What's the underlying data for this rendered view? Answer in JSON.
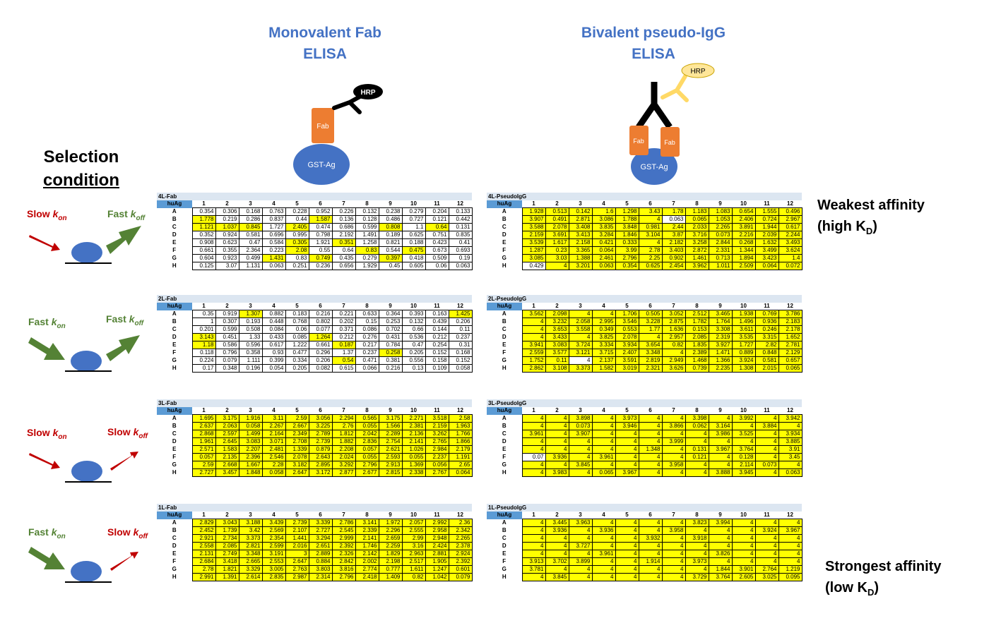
{
  "columns": {
    "fab_title_1": "Monovalent Fab",
    "fab_title_2": "ELISA",
    "igg_title_1": "Bivalent pseudo-IgG",
    "igg_title_2": "ELISA"
  },
  "selection": {
    "title_1": "Selection",
    "title_2": "condition"
  },
  "affinity": {
    "weak_1": "Weakest affinity",
    "weak_2_pre": "(high K",
    "weak_sub": "D",
    "weak_2_post": ")",
    "strong_1": "Strongest affinity",
    "strong_2_pre": "(low K",
    "strong_sub": "D",
    "strong_2_post": ")"
  },
  "diagram": {
    "hrp": "HRP",
    "fab": "Fab",
    "antigen": "GST-Ag"
  },
  "conditions": [
    {
      "on_speed": "Slow",
      "off_speed": "Fast",
      "k": "k",
      "on": "on",
      "off": "off"
    },
    {
      "on_speed": "Fast",
      "off_speed": "Fast",
      "k": "k",
      "on": "on",
      "off": "off"
    },
    {
      "on_speed": "Slow",
      "off_speed": "Slow",
      "k": "k",
      "on": "on",
      "off": "off"
    },
    {
      "on_speed": "Fast",
      "off_speed": "Slow",
      "k": "k",
      "on": "on",
      "off": "off"
    }
  ],
  "colors": {
    "highlight": "#ffff00",
    "header": "#5b9bd5",
    "title_band": "#dce6f1",
    "title_blue": "#4472c4",
    "red_arrow": "#c00000",
    "green_arrow": "#548235",
    "antigen_blue": "#4472c4",
    "fab_orange": "#ed7d31",
    "hrp_yellow": "#ffd966"
  },
  "plate_corner": "huAg",
  "plate_columns": [
    "1",
    "2",
    "3",
    "4",
    "5",
    "6",
    "7",
    "8",
    "9",
    "10",
    "11",
    "12"
  ],
  "plate_rows": [
    "A",
    "B",
    "C",
    "D",
    "E",
    "F",
    "G",
    "H"
  ],
  "plates": [
    {
      "title": "4L-Fab",
      "hi": "000000000000100001000000111010001010000000000000000010100000000010010100000101001000000000000000",
      "values": [
        [
          "0.354",
          "0.306",
          "0.168",
          "0.763",
          "0.228",
          "0.952",
          "0.226",
          "0.132",
          "0.238",
          "0.279",
          "0.204",
          "0.133"
        ],
        [
          "1.778",
          "0.219",
          "0.286",
          "0.837",
          "0.44",
          "1.587",
          "0.136",
          "0.128",
          "0.486",
          "0.727",
          "0.121",
          "0.442"
        ],
        [
          "1.121",
          "1.037",
          "0.845",
          "1.727",
          "2.405",
          "0.474",
          "0.686",
          "0.599",
          "0.808",
          "1.1",
          "0.64",
          "0.131"
        ],
        [
          "0.352",
          "0.924",
          "0.581",
          "0.696",
          "0.995",
          "0.798",
          "2.192",
          "1.491",
          "0.189",
          "0.625",
          "0.751",
          "0.835"
        ],
        [
          "0.908",
          "0.623",
          "0.47",
          "0.584",
          "0.305",
          "1.921",
          "0.351",
          "1.258",
          "0.821",
          "0.188",
          "0.423",
          "0.41"
        ],
        [
          "0.661",
          "0.355",
          "2.364",
          "0.223",
          "2.08",
          "0.55",
          "0.64",
          "0.83",
          "0.544",
          "0.475",
          "0.673",
          "0.693"
        ],
        [
          "0.604",
          "0.923",
          "0.499",
          "1.431",
          "0.83",
          "0.749",
          "0.435",
          "0.279",
          "0.397",
          "0.418",
          "0.509",
          "0.19"
        ],
        [
          "0.125",
          "3.07",
          "1.131",
          "0.063",
          "0.251",
          "0.236",
          "0.656",
          "1.929",
          "0.45",
          "0.605",
          "0.06",
          "0.063"
        ]
      ]
    },
    {
      "title": "4L-PseudoIgG",
      "hi": "111111111111111111011111111111111111111111111111111111111111111111111111111111111111011111111111",
      "values": [
        [
          "1.928",
          "0.513",
          "0.142",
          "1.6",
          "1.298",
          "3.43",
          "1.78",
          "1.183",
          "1.083",
          "0.654",
          "1.555",
          "0.496"
        ],
        [
          "3.907",
          "0.491",
          "2.871",
          "3.086",
          "1.788",
          "4",
          "0.063",
          "0.065",
          "1.053",
          "2.406",
          "0.724",
          "2.967"
        ],
        [
          "3.588",
          "2.078",
          "3.408",
          "3.835",
          "3.848",
          "0.981",
          "2.44",
          "2.033",
          "2.265",
          "3.891",
          "1.944",
          "0.617"
        ],
        [
          "2.159",
          "3.691",
          "3.413",
          "3.284",
          "1.846",
          "3.104",
          "3.87",
          "3.716",
          "0.073",
          "2.216",
          "2.039",
          "2.244"
        ],
        [
          "3.539",
          "1.617",
          "2.158",
          "0.421",
          "0.333",
          "4",
          "2.182",
          "3.258",
          "2.844",
          "0.268",
          "1.632",
          "3.493"
        ],
        [
          "1.287",
          "0.23",
          "3.365",
          "0.064",
          "3.99",
          "2.78",
          "3.403",
          "2.872",
          "2.331",
          "1.344",
          "3.499",
          "3.624"
        ],
        [
          "3.085",
          "3.03",
          "1.388",
          "2.461",
          "2.796",
          "2.25",
          "0.902",
          "1.461",
          "0.713",
          "1.894",
          "3.423",
          "1.4"
        ],
        [
          "0.429",
          "4",
          "3.201",
          "0.063",
          "0.354",
          "0.625",
          "2.454",
          "3.962",
          "1.011",
          "2.509",
          "0.064",
          "0.072"
        ]
      ]
    },
    {
      "title": "2L-Fab",
      "hi": "001000000001000000000000000000000000100001000000100000100000000000001000000000100000000000000000",
      "values": [
        [
          "0.35",
          "0.919",
          "1.307",
          "0.882",
          "0.183",
          "0.216",
          "0.221",
          "0.633",
          "0.364",
          "0.393",
          "0.163",
          "1.425"
        ],
        [
          "1",
          "0.307",
          "0.193",
          "0.448",
          "0.768",
          "0.802",
          "0.202",
          "0.15",
          "0.253",
          "0.132",
          "0.439",
          "0.206"
        ],
        [
          "0.201",
          "0.599",
          "0.508",
          "0.084",
          "0.06",
          "0.077",
          "0.371",
          "0.086",
          "0.702",
          "0.66",
          "0.144",
          "0.11"
        ],
        [
          "3.143",
          "0.451",
          "1.33",
          "0.433",
          "0.085",
          "1.264",
          "0.212",
          "0.276",
          "0.431",
          "0.536",
          "0.212",
          "0.237"
        ],
        [
          "1.18",
          "0.586",
          "0.596",
          "0.617",
          "1.222",
          "0.661",
          "0.187",
          "0.217",
          "0.784",
          "0.47",
          "0.254",
          "0.31"
        ],
        [
          "0.118",
          "0.796",
          "0.358",
          "0.93",
          "0.477",
          "0.296",
          "1.37",
          "0.237",
          "0.258",
          "0.205",
          "0.152",
          "0.168"
        ],
        [
          "0.224",
          "0.079",
          "1.111",
          "0.399",
          "0.334",
          "0.206",
          "0.54",
          "0.471",
          "0.381",
          "0.556",
          "0.158",
          "0.152"
        ],
        [
          "0.17",
          "0.348",
          "0.196",
          "0.054",
          "0.205",
          "0.082",
          "0.615",
          "0.066",
          "0.216",
          "0.13",
          "0.109",
          "0.058"
        ]
      ]
    },
    {
      "title": "2L-PseudoIgG",
      "hi": "111111111111111111111111111111111111111111111111111111111111111111111111110111111111111111111111",
      "values": [
        [
          "3.562",
          "2.098",
          "4",
          "4",
          "1.706",
          "0.505",
          "3.052",
          "2.512",
          "3.465",
          "1.938",
          "0.769",
          "3.786"
        ],
        [
          "4",
          "3.232",
          "2.058",
          "2.995",
          "3.546",
          "3.228",
          "2.875",
          "1.782",
          "1.764",
          "1.496",
          "0.936",
          "2.183"
        ],
        [
          "4",
          "3.653",
          "3.558",
          "0.349",
          "0.553",
          "1.77",
          "1.636",
          "0.153",
          "3.308",
          "3.611",
          "0.246",
          "2.178"
        ],
        [
          "4",
          "3.433",
          "4",
          "3.825",
          "2.078",
          "4",
          "2.957",
          "2.085",
          "2.319",
          "3.535",
          "3.315",
          "1.652"
        ],
        [
          "3.941",
          "3.083",
          "3.724",
          "3.334",
          "3.934",
          "3.654",
          "0.82",
          "1.835",
          "3.927",
          "1.727",
          "2.82",
          "2.781"
        ],
        [
          "2.559",
          "3.577",
          "3.121",
          "3.715",
          "2.407",
          "3.348",
          "4",
          "2.389",
          "1.471",
          "0.889",
          "0.848",
          "2.129"
        ],
        [
          "1.752",
          "0.11",
          "4",
          "2.137",
          "3.591",
          "2.819",
          "2.949",
          "1.468",
          "1.366",
          "3.924",
          "0.581",
          "0.657"
        ],
        [
          "2.862",
          "3.108",
          "3.373",
          "1.582",
          "3.019",
          "2.321",
          "3.626",
          "0.739",
          "2.235",
          "1.308",
          "2.015",
          "0.065"
        ]
      ]
    },
    {
      "title": "3L-Fab",
      "hi": "111111111111111111111111111111111111111111111111111111111111111111111111111111111111111111111111",
      "values": [
        [
          "1.695",
          "3.175",
          "1.916",
          "3.11",
          "2.59",
          "3.056",
          "2.294",
          "0.565",
          "3.175",
          "2.271",
          "3.518",
          "2.58"
        ],
        [
          "2.637",
          "2.063",
          "0.058",
          "2.267",
          "2.667",
          "3.225",
          "2.76",
          "0.055",
          "1.566",
          "2.381",
          "2.159",
          "1.963"
        ],
        [
          "2.868",
          "2.597",
          "1.499",
          "2.164",
          "2.349",
          "2.789",
          "1.812",
          "2.042",
          "2.289",
          "2.136",
          "3.262",
          "1.766"
        ],
        [
          "1.961",
          "2.645",
          "3.083",
          "3.071",
          "2.708",
          "2.739",
          "1.882",
          "2.836",
          "2.754",
          "2.141",
          "2.765",
          "1.866"
        ],
        [
          "2.571",
          "1.583",
          "2.207",
          "2.481",
          "1.339",
          "0.879",
          "2.208",
          "0.057",
          "2.621",
          "1.026",
          "2.984",
          "2.179"
        ],
        [
          "0.057",
          "2.135",
          "2.396",
          "2.546",
          "2.078",
          "2.643",
          "2.024",
          "0.055",
          "2.593",
          "0.055",
          "2.237",
          "1.191"
        ],
        [
          "2.59",
          "2.668",
          "1.667",
          "2.28",
          "3.182",
          "2.895",
          "3.292",
          "2.796",
          "2.913",
          "1.369",
          "0.056",
          "2.65"
        ],
        [
          "2.727",
          "3.457",
          "1.848",
          "0.058",
          "2.647",
          "3.172",
          "2.877",
          "2.677",
          "2.815",
          "2.338",
          "2.767",
          "0.064"
        ]
      ]
    },
    {
      "title": "3L-PseudoIgG",
      "hi": "111111111111111111111111111111111111111111111111111111111111011111111111111111111111111111111111",
      "values": [
        [
          "4",
          "4",
          "3.898",
          "4",
          "3.973",
          "4",
          "4",
          "3.398",
          "4",
          "3.992",
          "4",
          "3.942"
        ],
        [
          "4",
          "4",
          "0.073",
          "4",
          "3.946",
          "4",
          "3.866",
          "0.062",
          "3.164",
          "4",
          "3.884",
          "4"
        ],
        [
          "3.961",
          "4",
          "3.907",
          "4",
          "4",
          "4",
          "4",
          "4",
          "3.986",
          "3.525",
          "4",
          "3.934"
        ],
        [
          "4",
          "4",
          "4",
          "4",
          "4",
          "4",
          "3.999",
          "4",
          "4",
          "4",
          "4",
          "3.885"
        ],
        [
          "4",
          "4",
          "4",
          "4",
          "4",
          "1.348",
          "4",
          "0.131",
          "3.967",
          "3.764",
          "4",
          "3.91"
        ],
        [
          "0.07",
          "3.936",
          "4",
          "3.961",
          "4",
          "4",
          "4",
          "0.121",
          "4",
          "0.128",
          "4",
          "3.45"
        ],
        [
          "4",
          "4",
          "3.845",
          "4",
          "4",
          "4",
          "3.958",
          "4",
          "4",
          "2.114",
          "0.073",
          "4"
        ],
        [
          "4",
          "3.983",
          "4",
          "0.065",
          "3.967",
          "4",
          "4",
          "4",
          "3.888",
          "3.945",
          "4",
          "0.063"
        ]
      ]
    },
    {
      "title": "1L-Fab",
      "hi": "111111111111111111111111111111111111111111111111111111111111111111111111111111111111111111111111",
      "values": [
        [
          "2.829",
          "3.043",
          "3.188",
          "3.439",
          "2.739",
          "3.339",
          "2.786",
          "3.141",
          "1.972",
          "2.057",
          "2.992",
          "2.36"
        ],
        [
          "2.452",
          "1.739",
          "3.42",
          "2.569",
          "2.107",
          "2.727",
          "2.545",
          "2.339",
          "2.296",
          "2.555",
          "2.958",
          "2.342"
        ],
        [
          "2.921",
          "2.734",
          "3.373",
          "2.354",
          "1.441",
          "3.294",
          "2.999",
          "2.141",
          "2.659",
          "2.99",
          "2.948",
          "2.265"
        ],
        [
          "2.558",
          "2.085",
          "2.821",
          "2.599",
          "2.016",
          "2.651",
          "2.392",
          "1.746",
          "2.259",
          "3.16",
          "2.424",
          "2.378"
        ],
        [
          "2.131",
          "2.749",
          "3.348",
          "3.191",
          "3",
          "2.889",
          "2.326",
          "2.142",
          "1.829",
          "2.963",
          "2.881",
          "2.924"
        ],
        [
          "2.684",
          "3.418",
          "2.665",
          "2.553",
          "2.647",
          "0.884",
          "2.842",
          "2.002",
          "2.198",
          "2.517",
          "1.905",
          "2.392"
        ],
        [
          "2.78",
          "1.821",
          "3.329",
          "3.005",
          "2.763",
          "3.803",
          "3.816",
          "2.774",
          "0.777",
          "1.611",
          "1.247",
          "0.601"
        ],
        [
          "2.991",
          "1.391",
          "2.614",
          "2.835",
          "2.987",
          "2.314",
          "2.796",
          "2.418",
          "1.409",
          "0.82",
          "1.042",
          "0.079"
        ]
      ]
    },
    {
      "title": "1L-PseudoIgG",
      "hi": "111111111111111111111111111111111111111111111111111111111111111111111111111111111111111111111111",
      "values": [
        [
          "4",
          "3.445",
          "3.963",
          "4",
          "4",
          "4",
          "4",
          "3.823",
          "3.994",
          "4",
          "4",
          "4"
        ],
        [
          "4",
          "3.936",
          "4",
          "3.936",
          "4",
          "4",
          "3.958",
          "4",
          "4",
          "4",
          "3.924",
          "3.967"
        ],
        [
          "4",
          "4",
          "4",
          "4",
          "4",
          "3.932",
          "4",
          "3.918",
          "4",
          "4",
          "4",
          "4"
        ],
        [
          "4",
          "4",
          "3.727",
          "4",
          "4",
          "4",
          "4",
          "4",
          "4",
          "4",
          "4",
          "4"
        ],
        [
          "4",
          "4",
          "4",
          "3.961",
          "4",
          "4",
          "4",
          "4",
          "3.826",
          "4",
          "4",
          "4"
        ],
        [
          "3.913",
          "3.702",
          "3.899",
          "4",
          "4",
          "1.914",
          "4",
          "3.973",
          "4",
          "4",
          "4",
          "4"
        ],
        [
          "3.781",
          "4",
          "4",
          "4",
          "4",
          "4",
          "4",
          "4",
          "1.844",
          "3.901",
          "2.764",
          "1.219"
        ],
        [
          "4",
          "3.845",
          "4",
          "4",
          "4",
          "4",
          "4",
          "3.729",
          "3.764",
          "2.605",
          "3.025",
          "0.095"
        ]
      ]
    }
  ]
}
